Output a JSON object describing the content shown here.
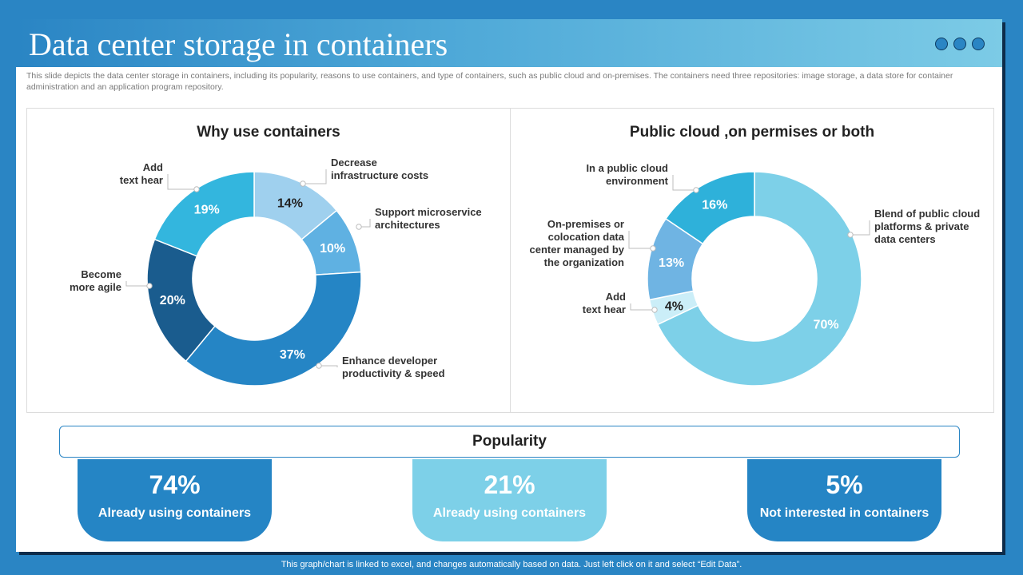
{
  "header": {
    "title": "Data center storage in containers",
    "subtitle": "This slide depicts the data center storage in containers, including its popularity, reasons to use containers, and type of containers, such as public cloud and on-premises. The containers need three repositories: image storage, a data store for container administration and an application program repository."
  },
  "chart_data": [
    {
      "type": "donut",
      "title": "Why use containers",
      "segments": [
        {
          "label": [
            "Decrease",
            "infrastructure  costs"
          ],
          "value": 14,
          "display": "14%",
          "color": "#9fd0ee",
          "text_color": "#222222"
        },
        {
          "label": [
            "Support microservice",
            "architectures"
          ],
          "value": 10,
          "display": "10%",
          "color": "#5fb1e2",
          "text_color": "#ffffff"
        },
        {
          "label": [
            "Enhance developer",
            "productivity & speed"
          ],
          "value": 37,
          "display": "37%",
          "color": "#2585c5",
          "text_color": "#ffffff"
        },
        {
          "label": [
            "Become",
            "more agile"
          ],
          "value": 20,
          "display": "20%",
          "color": "#1a5c8e",
          "text_color": "#ffffff"
        },
        {
          "label": [
            "Add",
            "text hear"
          ],
          "value": 19,
          "display": "19%",
          "color": "#33b6de",
          "text_color": "#ffffff"
        }
      ]
    },
    {
      "type": "donut",
      "title": "Public cloud ,on permises or both",
      "segments": [
        {
          "label": [
            "Blend of public cloud",
            "platforms & private",
            "data centers"
          ],
          "value": 70,
          "display": "70%",
          "color": "#7dd0e8",
          "text_color": "#ffffff"
        },
        {
          "label": [
            "Add",
            "text hear"
          ],
          "value": 4,
          "display": "4%",
          "color": "#cbeef8",
          "text_color": "#222222"
        },
        {
          "label": [
            "On-premises  or",
            "colocation data",
            "center managed by",
            "the organization"
          ],
          "value": 13,
          "display": "13%",
          "color": "#6fb4e3",
          "text_color": "#ffffff"
        },
        {
          "label": [
            "In a public cloud",
            "environment"
          ],
          "value": 16,
          "display": "16%",
          "color": "#2eb1da",
          "text_color": "#ffffff"
        }
      ]
    }
  ],
  "popularity": {
    "title": "Popularity",
    "stats": [
      {
        "value": "74%",
        "label": "Already using containers",
        "color": "#2585c5"
      },
      {
        "value": "21%",
        "label": "Already using containers",
        "color": "#7dd0e8"
      },
      {
        "value": "5%",
        "label": "Not interested in containers",
        "color": "#2585c5"
      }
    ]
  },
  "footer": "This graph/chart is linked to excel,  and changes automatically based on data. Just left click on it and select “Edit Data”."
}
